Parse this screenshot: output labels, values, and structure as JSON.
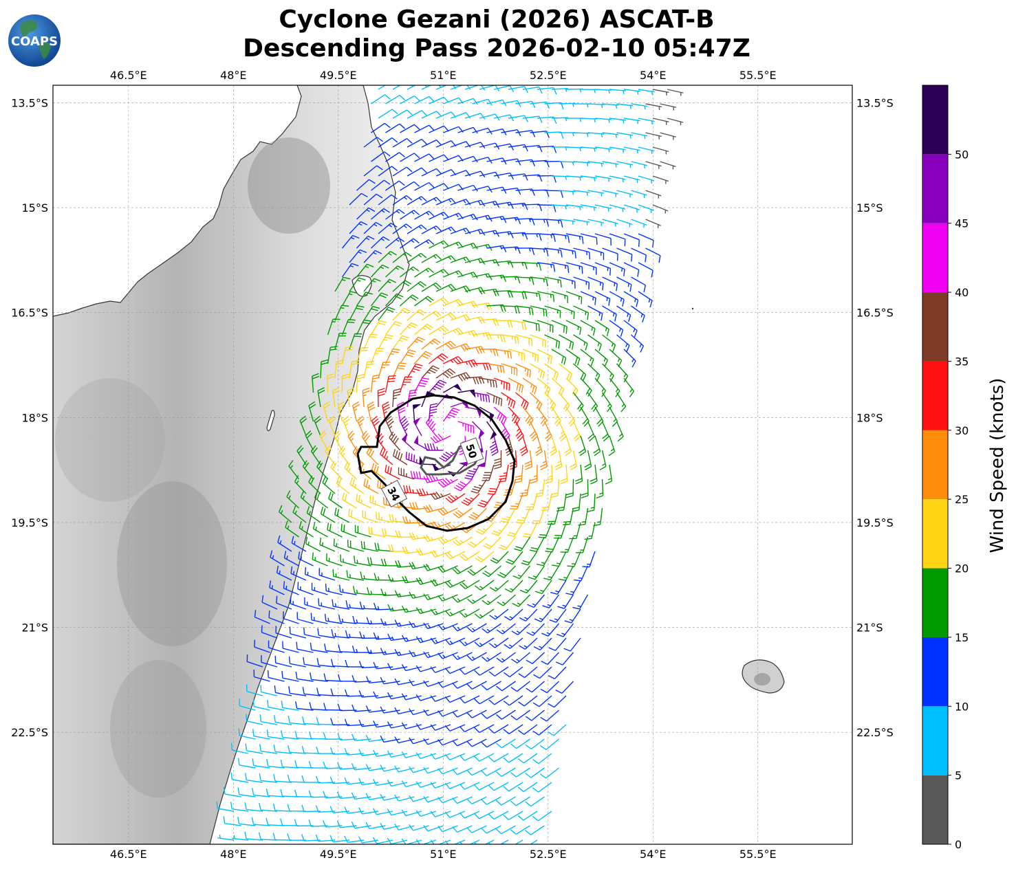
{
  "title": {
    "line1": "Cyclone Gezani (2026) ASCAT-B",
    "line2": "Descending Pass 2026-02-10 05:47Z"
  },
  "logo": {
    "text": "COAPS",
    "icon": "globe-logo-icon"
  },
  "map": {
    "lon_range": [
      45.42,
      56.85
    ],
    "lat_range": [
      -24.1,
      -13.25
    ],
    "lon_ticks": [
      "46.5°E",
      "48°E",
      "49.5°E",
      "51°E",
      "52.5°E",
      "54°E",
      "55.5°E"
    ],
    "lon_tick_values": [
      46.5,
      48,
      49.5,
      51,
      52.5,
      54,
      55.5
    ],
    "lat_ticks": [
      "13.5°S",
      "15°S",
      "16.5°S",
      "18°S",
      "19.5°S",
      "21°S",
      "22.5°S"
    ],
    "lat_tick_values": [
      -13.5,
      -15,
      -16.5,
      -18,
      -19.5,
      -21,
      -22.5
    ],
    "gridlines": true,
    "storm_center": {
      "lon": 51.1,
      "lat": -18.2
    },
    "contours": [
      {
        "label": "34",
        "value_kt": 34
      },
      {
        "label": "50",
        "value_kt": 50
      }
    ]
  },
  "colorbar": {
    "label": "Wind Speed (knots)",
    "tick_labels": [
      "0",
      "5",
      "10",
      "15",
      "20",
      "25",
      "30",
      "35",
      "40",
      "45",
      "50"
    ],
    "bins": [
      {
        "min": 0,
        "max": 5,
        "color": "#595959"
      },
      {
        "min": 5,
        "max": 10,
        "color": "#00bfff"
      },
      {
        "min": 10,
        "max": 15,
        "color": "#0033ff"
      },
      {
        "min": 15,
        "max": 20,
        "color": "#009900"
      },
      {
        "min": 20,
        "max": 25,
        "color": "#ffd414"
      },
      {
        "min": 25,
        "max": 30,
        "color": "#ff8c0a"
      },
      {
        "min": 30,
        "max": 35,
        "color": "#ff1111"
      },
      {
        "min": 35,
        "max": 40,
        "color": "#803b28"
      },
      {
        "min": 40,
        "max": 45,
        "color": "#f000f0"
      },
      {
        "min": 45,
        "max": 50,
        "color": "#8800bb"
      },
      {
        "min": 50,
        "max": 55,
        "color": "#2d0055"
      }
    ]
  }
}
